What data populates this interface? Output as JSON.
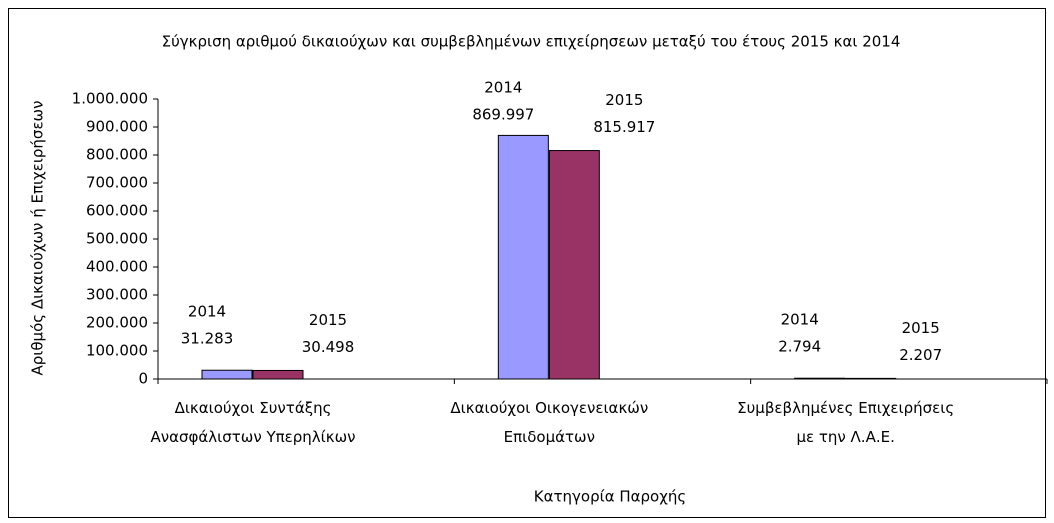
{
  "chart_data": {
    "type": "bar",
    "title": "Σύγκριση αριθμού δικαιούχων και συμβεβλημένων επιχείρησεων μεταξύ του έτους 2015 και 2014",
    "x_label": "Κατηγορία Παροχής",
    "y_label": "Αριθμός Δικαιούχων ή Επιχειρήσεων",
    "categories": [
      "Δικαιούχοι Συντάξης Ανασφάλιστων Υπερηλίκων",
      "Δικαιούχοι Οικογενειακών Επιδομάτων",
      "Συμβεβλημένες Επιχειρήσεις με την Λ.Α.Ε."
    ],
    "series": [
      {
        "name": "2014",
        "color": "#9999ff",
        "values": [
          31283,
          869997,
          2794
        ],
        "value_labels": [
          "31.283",
          "869.997",
          "2.794"
        ]
      },
      {
        "name": "2015",
        "color": "#993366",
        "values": [
          30498,
          815917,
          2207
        ],
        "value_labels": [
          "30.498",
          "815.917",
          "2.207"
        ]
      }
    ],
    "ylim": [
      0,
      1000000
    ],
    "yticks": [
      0,
      {
        "value": 100000,
        "label": "100.000"
      },
      {
        "value": 200000,
        "label": "200.000"
      },
      {
        "value": 300000,
        "label": "300.000"
      },
      {
        "value": 400000,
        "label": "400.000"
      },
      {
        "value": 500000,
        "label": "500.000"
      },
      {
        "value": 600000,
        "label": "600.000"
      },
      {
        "value": 700000,
        "label": "700.000"
      },
      {
        "value": 800000,
        "label": "800.000"
      },
      {
        "value": 900000,
        "label": "900.000"
      },
      {
        "value": 1000000,
        "label": "1.000.000"
      }
    ],
    "grid": false
  }
}
